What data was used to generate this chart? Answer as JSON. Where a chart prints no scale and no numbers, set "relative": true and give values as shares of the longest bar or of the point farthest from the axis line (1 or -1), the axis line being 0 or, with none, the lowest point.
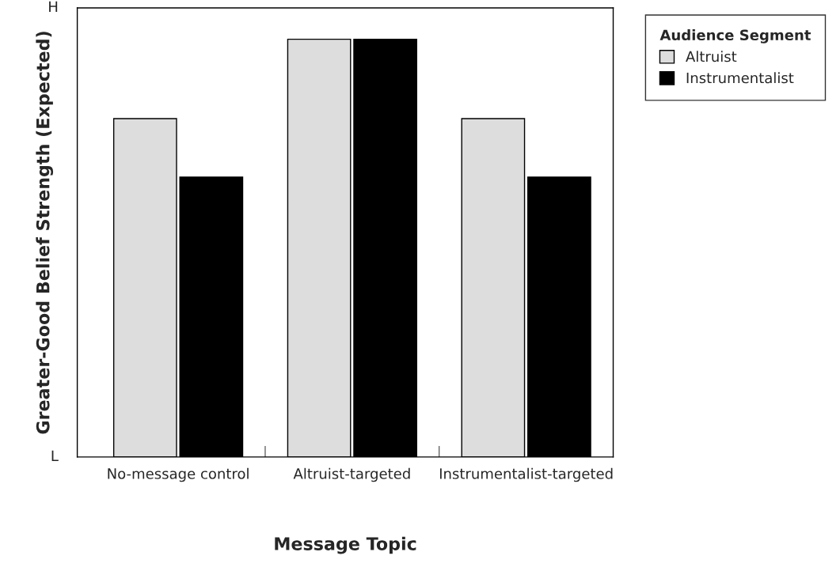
{
  "chart_data": {
    "type": "bar",
    "xlabel": "Message Topic",
    "ylabel": "Greater-Good Belief Strength (Expected)",
    "legend_title": "Audience Segment",
    "categories": [
      "No-message control",
      "Altruist-targeted",
      "Instrumentalist-targeted"
    ],
    "series": [
      {
        "name": "Altruist",
        "color": "#dddddd",
        "values": [
          0.81,
          1,
          0.81
        ]
      },
      {
        "name": "Instrumentalist",
        "color": "#000000",
        "values": [
          0.67,
          1,
          0.67
        ]
      }
    ],
    "relative": true,
    "annotations": [
      "H",
      "L"
    ],
    "grid": false,
    "legend": "top right"
  }
}
